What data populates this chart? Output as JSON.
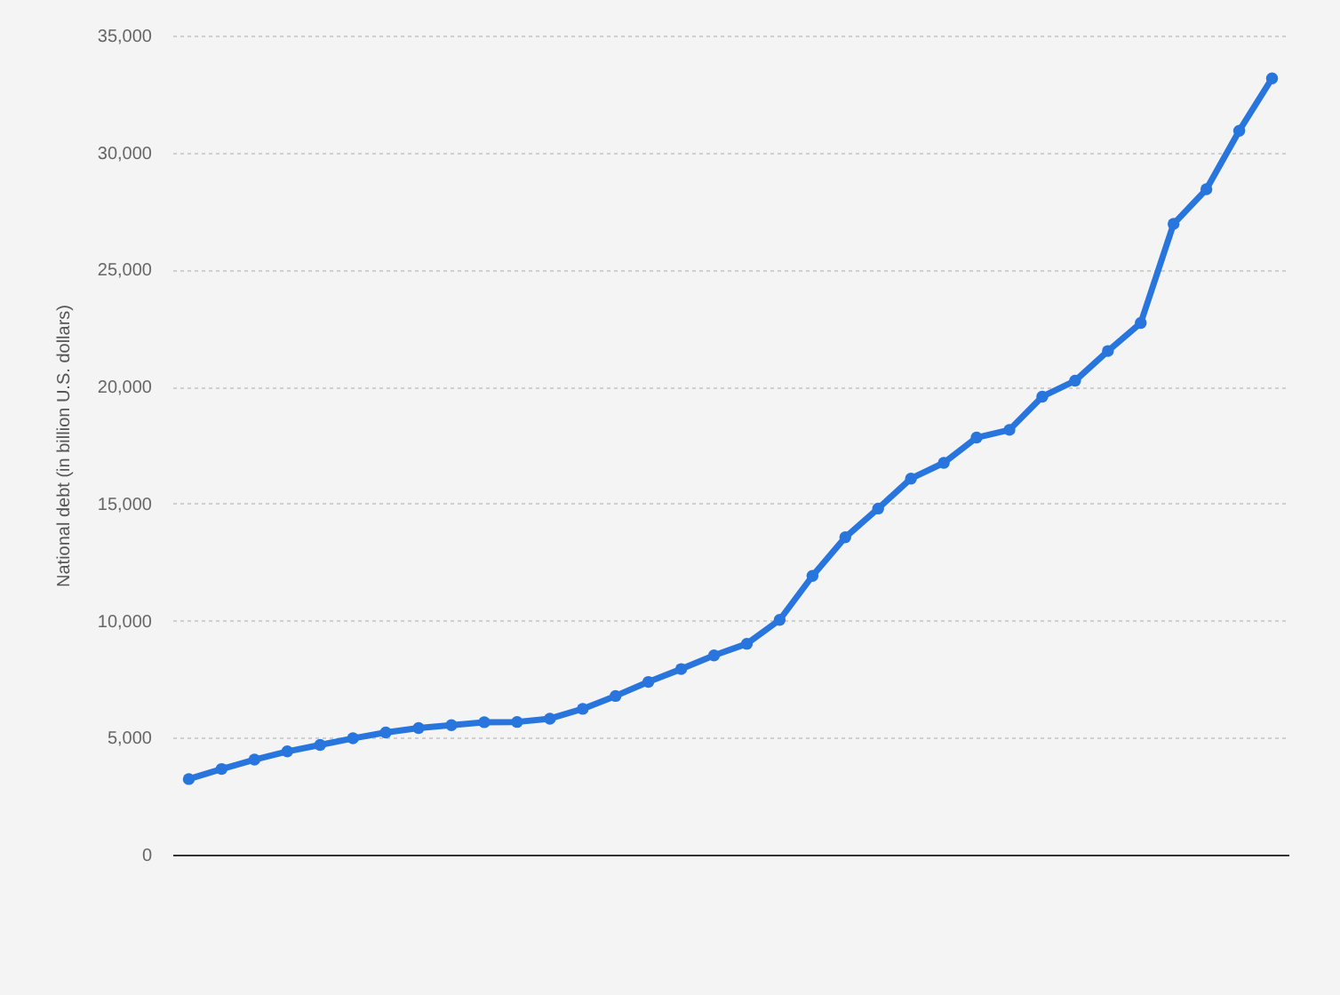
{
  "chart_data": {
    "type": "line",
    "ylabel": "National debt (in billion U.S. dollars)",
    "categories": [
      null,
      null,
      null,
      null,
      null,
      null,
      null,
      null,
      null,
      null,
      null,
      null,
      null,
      null,
      null,
      null,
      null,
      null,
      null,
      null,
      null,
      null,
      null,
      null,
      null,
      null,
      null,
      null,
      null,
      null,
      null,
      null,
      null,
      null
    ],
    "series": [
      {
        "color": "#2876dd",
        "values": [
          3230,
          3660,
          4060,
          4410,
          4690,
          4970,
          5220,
          5410,
          5530,
          5660,
          5670,
          5810,
          6230,
          6780,
          7380,
          7930,
          8510,
          9010,
          10030,
          11910,
          13560,
          14790,
          16070,
          16740,
          17820,
          18150,
          19570,
          20250,
          21520,
          22720,
          26950,
          28430,
          30930,
          33170
        ]
      }
    ],
    "ylim": [
      0,
      35000
    ],
    "yticks": [
      0,
      {
        "value": 5000,
        "label": "5,000"
      },
      {
        "value": 10000,
        "label": "10,000"
      },
      {
        "value": 15000,
        "label": "15,000"
      },
      {
        "value": 20000,
        "label": "20,000"
      },
      {
        "value": 25000,
        "label": "25,000"
      },
      {
        "value": 30000,
        "label": "30,000"
      },
      {
        "value": 35000,
        "label": "35,000"
      }
    ],
    "grid": "y",
    "legend": false,
    "tick_labels": "y",
    "marker": "circle",
    "line_style": "solid"
  }
}
